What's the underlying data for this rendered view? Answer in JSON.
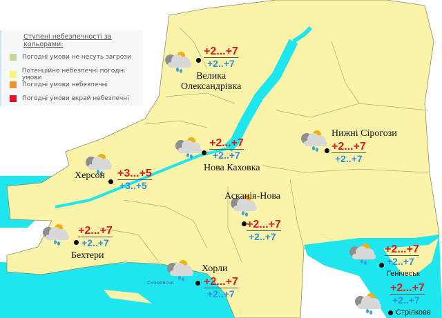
{
  "legend": {
    "title": "Ступені небезпечності за кольорами:",
    "items": [
      {
        "label": "Погодні умови не несуть загрози",
        "color": "#c5d98a"
      },
      {
        "label": "Потенційно небезпечні погодні умови",
        "color": "#fdf57a"
      },
      {
        "label": "Погодні умови небезпечні",
        "color": "#f0922e"
      },
      {
        "label": "Погодні умови вкрай небезпечні",
        "color": "#e3142a"
      }
    ]
  },
  "colors": {
    "land": "#fbf3a8",
    "water": "#1ee6ee"
  },
  "cities": [
    {
      "name": "Велика Олександрівка",
      "line1": "Велика",
      "line2": "Олександрівка",
      "day": "+2...+7",
      "night": "+2..+7",
      "icon": "cloud-sun-rain-icon"
    },
    {
      "name": "Нижні Сірогози",
      "day": "+2...+7",
      "night": "+2..+7",
      "icon": "cloud-sun-rain-icon"
    },
    {
      "name": "Нова Каховка",
      "day": "+2...+7",
      "night": "+2..+7",
      "icon": "cloud-sun-rain-icon"
    },
    {
      "name": "Херсон",
      "day": "+3...+5",
      "night": "+3..+5",
      "icon": "cloud-sun-rain-icon"
    },
    {
      "name": "Асканія-Нова",
      "day": "+2...+7",
      "night": "+2..+7",
      "icon": "cloud-sun-rain-icon"
    },
    {
      "name": "Бехтери",
      "day": "+2...+7",
      "night": "+2..+7",
      "icon": "cloud-sun-rain-icon"
    },
    {
      "name": "Хорли",
      "day": "+2...+7",
      "night": "+2..+7",
      "icon": "cloud-sun-rain-icon"
    },
    {
      "name": "Генічеськ",
      "day": "+2...+7",
      "night": "+2..+7",
      "icon": "cloud-sun-rain-icon"
    },
    {
      "name": "Стрілкове",
      "day": "+2...+7",
      "night": "+2..+7",
      "icon": "cloud-sun-rain-icon"
    }
  ],
  "small_labels": {
    "skadovsk": "Скадовськ"
  }
}
